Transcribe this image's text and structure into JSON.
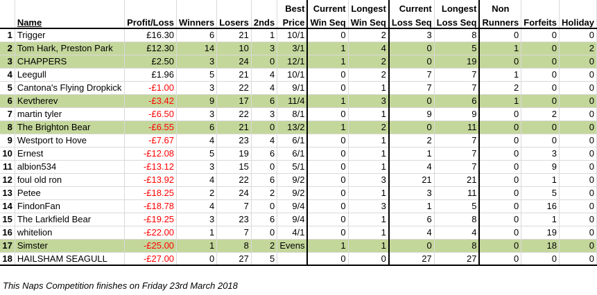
{
  "headers": {
    "name": "Name",
    "profit_loss": "Profit/Loss",
    "winners": "Winners",
    "losers": "Losers",
    "seconds": "2nds",
    "best_price_1": "Best",
    "best_price_2": "Price",
    "current_win_1": "Current",
    "current_win_2": "Win Seq",
    "longest_win_1": "Longest",
    "longest_win_2": "Win Seq",
    "current_loss_1": "Current",
    "current_loss_2": "Loss Seq",
    "longest_loss_1": "Longest",
    "longest_loss_2": "Loss Seq",
    "non_runners_1": "Non",
    "non_runners_2": "Runners",
    "forfeits": "Forfeits",
    "holiday": "Holiday"
  },
  "rows": [
    {
      "rank": "1",
      "name": "Trigger",
      "pl": "£16.30",
      "w": "6",
      "l": "21",
      "s": "1",
      "bp": "10/1",
      "cw": "0",
      "lw": "2",
      "cl": "3",
      "ll": "8",
      "nr": "0",
      "f": "0",
      "h": "0",
      "green": false,
      "neg": false
    },
    {
      "rank": "2",
      "name": "Tom Hark, Preston Park",
      "pl": "£12.30",
      "w": "14",
      "l": "10",
      "s": "3",
      "bp": "3/1",
      "cw": "1",
      "lw": "4",
      "cl": "0",
      "ll": "5",
      "nr": "1",
      "f": "0",
      "h": "2",
      "green": true,
      "neg": false
    },
    {
      "rank": "3",
      "name": "CHAPPERS",
      "pl": "£2.50",
      "w": "3",
      "l": "24",
      "s": "0",
      "bp": "12/1",
      "cw": "1",
      "lw": "2",
      "cl": "0",
      "ll": "19",
      "nr": "0",
      "f": "0",
      "h": "0",
      "green": true,
      "neg": false
    },
    {
      "rank": "4",
      "name": "Leegull",
      "pl": "£1.96",
      "w": "5",
      "l": "21",
      "s": "4",
      "bp": "10/1",
      "cw": "0",
      "lw": "2",
      "cl": "7",
      "ll": "7",
      "nr": "1",
      "f": "0",
      "h": "0",
      "green": false,
      "neg": false
    },
    {
      "rank": "5",
      "name": "Cantona's Flying Dropkick",
      "pl": "-£1.00",
      "w": "3",
      "l": "22",
      "s": "4",
      "bp": "9/1",
      "cw": "0",
      "lw": "1",
      "cl": "7",
      "ll": "7",
      "nr": "2",
      "f": "0",
      "h": "0",
      "green": false,
      "neg": true
    },
    {
      "rank": "6",
      "name": "Kevtherev",
      "pl": "-£3.42",
      "w": "9",
      "l": "17",
      "s": "6",
      "bp": "11/4",
      "cw": "1",
      "lw": "3",
      "cl": "0",
      "ll": "6",
      "nr": "1",
      "f": "0",
      "h": "0",
      "green": true,
      "neg": true
    },
    {
      "rank": "7",
      "name": "martin tyler",
      "pl": "-£6.50",
      "w": "3",
      "l": "22",
      "s": "3",
      "bp": "8/1",
      "cw": "0",
      "lw": "1",
      "cl": "9",
      "ll": "9",
      "nr": "0",
      "f": "2",
      "h": "0",
      "green": false,
      "neg": true
    },
    {
      "rank": "8",
      "name": "The Brighton Bear",
      "pl": "-£6.55",
      "w": "6",
      "l": "21",
      "s": "0",
      "bp": "13/2",
      "cw": "1",
      "lw": "2",
      "cl": "0",
      "ll": "11",
      "nr": "0",
      "f": "0",
      "h": "0",
      "green": true,
      "neg": true
    },
    {
      "rank": "9",
      "name": "Westport to Hove",
      "pl": "-£7.67",
      "w": "4",
      "l": "23",
      "s": "4",
      "bp": "6/1",
      "cw": "0",
      "lw": "1",
      "cl": "2",
      "ll": "7",
      "nr": "0",
      "f": "0",
      "h": "0",
      "green": false,
      "neg": true
    },
    {
      "rank": "10",
      "name": "Ernest",
      "pl": "-£12.08",
      "w": "5",
      "l": "19",
      "s": "6",
      "bp": "6/1",
      "cw": "0",
      "lw": "1",
      "cl": "1",
      "ll": "7",
      "nr": "0",
      "f": "3",
      "h": "0",
      "green": false,
      "neg": true
    },
    {
      "rank": "11",
      "name": "albion534",
      "pl": "-£13.12",
      "w": "3",
      "l": "15",
      "s": "0",
      "bp": "5/1",
      "cw": "0",
      "lw": "1",
      "cl": "4",
      "ll": "7",
      "nr": "0",
      "f": "9",
      "h": "0",
      "green": false,
      "neg": true
    },
    {
      "rank": "12",
      "name": "foul old ron",
      "pl": "-£13.92",
      "w": "4",
      "l": "22",
      "s": "6",
      "bp": "9/2",
      "cw": "0",
      "lw": "3",
      "cl": "21",
      "ll": "21",
      "nr": "0",
      "f": "1",
      "h": "0",
      "green": false,
      "neg": true
    },
    {
      "rank": "13",
      "name": "Petee",
      "pl": "-£18.25",
      "w": "2",
      "l": "24",
      "s": "2",
      "bp": "9/2",
      "cw": "0",
      "lw": "1",
      "cl": "3",
      "ll": "11",
      "nr": "0",
      "f": "5",
      "h": "0",
      "green": false,
      "neg": true
    },
    {
      "rank": "14",
      "name": "FindonFan",
      "pl": "-£18.78",
      "w": "4",
      "l": "7",
      "s": "0",
      "bp": "9/4",
      "cw": "0",
      "lw": "3",
      "cl": "1",
      "ll": "5",
      "nr": "0",
      "f": "16",
      "h": "0",
      "green": false,
      "neg": true
    },
    {
      "rank": "15",
      "name": "The Larkfield Bear",
      "pl": "-£19.25",
      "w": "3",
      "l": "23",
      "s": "6",
      "bp": "9/4",
      "cw": "0",
      "lw": "1",
      "cl": "6",
      "ll": "8",
      "nr": "0",
      "f": "1",
      "h": "0",
      "green": false,
      "neg": true
    },
    {
      "rank": "16",
      "name": "whitelion",
      "pl": "-£22.00",
      "w": "1",
      "l": "7",
      "s": "0",
      "bp": "4/1",
      "cw": "0",
      "lw": "1",
      "cl": "4",
      "ll": "4",
      "nr": "0",
      "f": "19",
      "h": "0",
      "green": false,
      "neg": true
    },
    {
      "rank": "17",
      "name": "Simster",
      "pl": "-£25.00",
      "w": "1",
      "l": "8",
      "s": "2",
      "bp": "Evens",
      "cw": "1",
      "lw": "1",
      "cl": "0",
      "ll": "8",
      "nr": "0",
      "f": "18",
      "h": "0",
      "green": true,
      "neg": true
    },
    {
      "rank": "18",
      "name": "HAILSHAM SEAGULL",
      "pl": "-£27.00",
      "w": "0",
      "l": "27",
      "s": "5",
      "bp": "",
      "cw": "0",
      "lw": "0",
      "cl": "27",
      "ll": "27",
      "nr": "0",
      "f": "0",
      "h": "0",
      "green": false,
      "neg": true
    }
  ],
  "footer": "This Naps Competition finishes on Friday 23rd March 2018",
  "colors": {
    "highlight": "#c4d79b",
    "negative": "#ff0000"
  }
}
